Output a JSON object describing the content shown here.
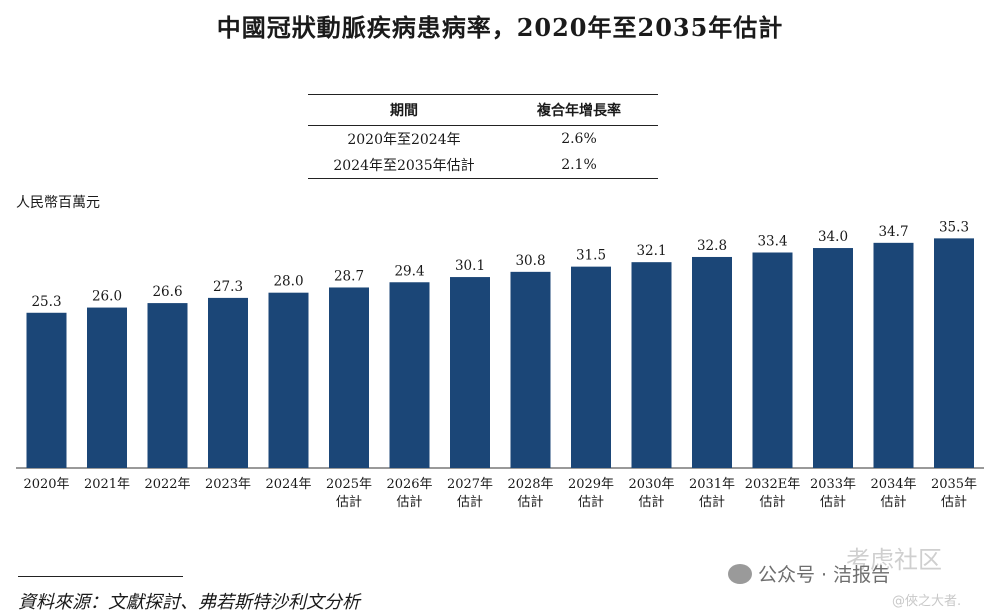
{
  "title": "中國冠狀動脈疾病患病率，2020年至2035年估計",
  "cagr_table": {
    "headers": [
      "期間",
      "複合年增長率"
    ],
    "rows": [
      [
        "2020年至2024年",
        "2.6%"
      ],
      [
        "2024年至2035年估計",
        "2.1%"
      ]
    ]
  },
  "unit_label": "人民幣百萬元",
  "source": "資料來源：文獻探討、弗若斯特沙利文分析",
  "watermarks": {
    "wechat": "公众号 · 洁报告",
    "site": "考虑社区",
    "handle": "@俠之大者."
  },
  "colors": {
    "bar": "#1b4677"
  },
  "chart_data": {
    "type": "bar",
    "categories": [
      [
        "2020年"
      ],
      [
        "2021年"
      ],
      [
        "2022年"
      ],
      [
        "2023年"
      ],
      [
        "2024年"
      ],
      [
        "2025年",
        "估計"
      ],
      [
        "2026年",
        "估計"
      ],
      [
        "2027年",
        "估計"
      ],
      [
        "2028年",
        "估計"
      ],
      [
        "2029年",
        "估計"
      ],
      [
        "2030年",
        "估計"
      ],
      [
        "2031年",
        "估計"
      ],
      [
        "2032E年",
        "估計"
      ],
      [
        "2033年",
        "估計"
      ],
      [
        "2034年",
        "估計"
      ],
      [
        "2035年",
        "估計"
      ]
    ],
    "values": [
      25.3,
      26.0,
      26.6,
      27.3,
      28.0,
      28.7,
      29.4,
      30.1,
      30.8,
      31.5,
      32.1,
      32.8,
      33.4,
      34.0,
      34.7,
      35.3
    ],
    "value_labels": [
      "25.3",
      "26.0",
      "26.6",
      "27.3",
      "28.0",
      "28.7",
      "29.4",
      "30.1",
      "30.8",
      "31.5",
      "32.1",
      "32.8",
      "33.4",
      "34.0",
      "34.7",
      "35.3"
    ],
    "title": "中國冠狀動脈疾病患病率，2020年至2035年估計",
    "ylabel": "人民幣百萬元",
    "grid": false
  }
}
